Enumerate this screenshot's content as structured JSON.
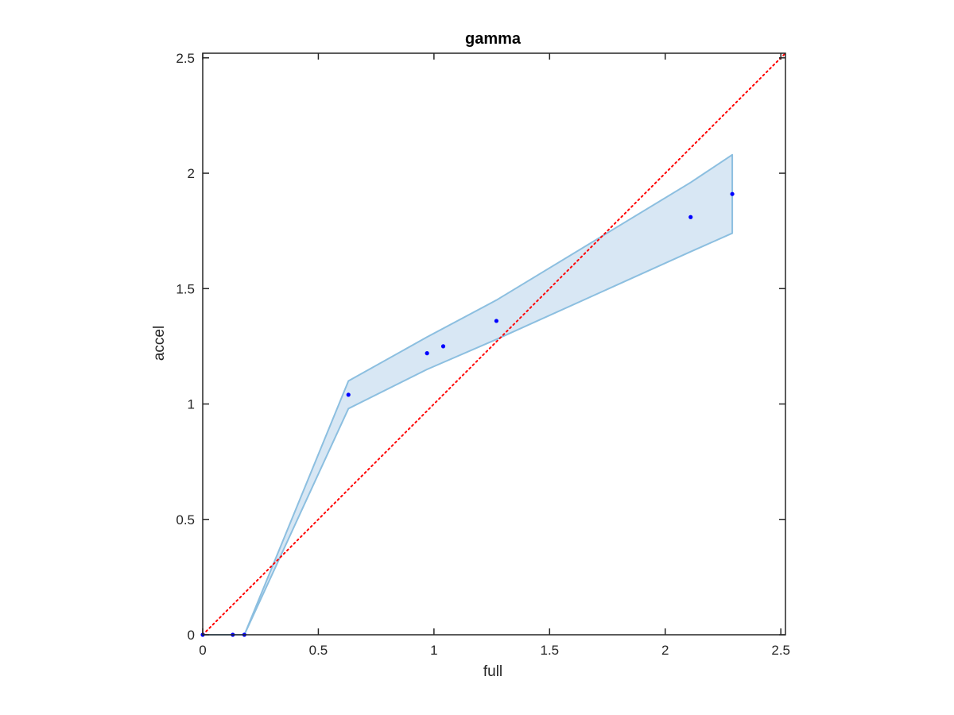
{
  "chart_data": {
    "type": "scatter",
    "title": "gamma",
    "xlabel": "full",
    "ylabel": "accel",
    "xlim": [
      0,
      2.52
    ],
    "ylim": [
      0,
      2.52
    ],
    "xticks": [
      "0",
      "0.5",
      "1",
      "1.5",
      "2",
      "2.5"
    ],
    "yticks": [
      "0",
      "0.5",
      "1",
      "1.5",
      "2",
      "2.5"
    ],
    "grid": false,
    "colors": {
      "points": "#0000ff",
      "reference_line": "#ff0000",
      "band_fill": "#d8e7f4",
      "band_edge": "#8cbfe0",
      "axes": "#262626"
    },
    "series": [
      {
        "type": "scatter",
        "x": [
          0,
          0.13,
          0.18,
          0.63,
          0.97,
          1.04,
          1.27,
          2.11,
          2.29
        ],
        "y": [
          0,
          0,
          0,
          1.04,
          1.22,
          1.25,
          1.36,
          1.81,
          1.91
        ]
      },
      {
        "type": "band",
        "x": [
          0,
          0.18,
          0.63,
          0.97,
          1.27,
          2.11,
          2.29
        ],
        "upper": [
          0,
          0,
          1.1,
          1.29,
          1.45,
          1.96,
          2.08
        ],
        "lower": [
          0,
          0,
          0.98,
          1.15,
          1.28,
          1.66,
          1.74
        ]
      },
      {
        "type": "line",
        "style": "dotted",
        "x": [
          0,
          2.52
        ],
        "y": [
          0,
          2.52
        ]
      }
    ]
  }
}
